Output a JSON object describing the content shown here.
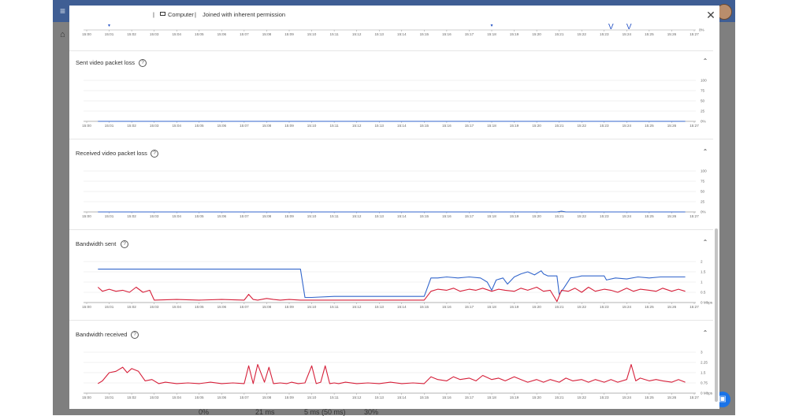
{
  "header": {
    "device_label": "Computer",
    "permission_label": "Joined with inherent permission",
    "close_icon": "close-icon"
  },
  "time_ticks": [
    "15:00",
    "15:01",
    "15:02",
    "15:03",
    "15:04",
    "15:05",
    "15:06",
    "15:07",
    "15:08",
    "15:09",
    "15:10",
    "15:11",
    "15:12",
    "15:13",
    "15:14",
    "15:15",
    "15:16",
    "15:17",
    "15:18",
    "15:19",
    "15:20",
    "15:21",
    "15:22",
    "15:23",
    "15:24",
    "15:25",
    "15:26",
    "15:27"
  ],
  "top_chart": {
    "y_tick": "0%",
    "markers": [
      {
        "time": 1.0,
        "label": "▾"
      },
      {
        "time": 18.0,
        "label": "▾"
      },
      {
        "time": 23.3,
        "label": "V"
      },
      {
        "time": 24.1,
        "label": "V"
      }
    ]
  },
  "sections": [
    {
      "title": "Sent video packet loss"
    },
    {
      "title": "Received video packet loss"
    },
    {
      "title": "Bandwidth sent"
    },
    {
      "title": "Bandwidth received"
    }
  ],
  "chart_data": [
    {
      "type": "line",
      "title": "Sent video packet loss",
      "y_ticks": [
        "100",
        "75",
        "50",
        "25",
        "0%"
      ],
      "ylim": [
        0,
        100
      ],
      "series": [
        {
          "color": "#3366cc",
          "x": [
            0.5,
            26.6
          ],
          "y": [
            0,
            0
          ]
        }
      ]
    },
    {
      "type": "line",
      "title": "Received video packet loss",
      "y_ticks": [
        "100",
        "75",
        "50",
        "25",
        "0%"
      ],
      "ylim": [
        0,
        100
      ],
      "series": [
        {
          "color": "#3366cc",
          "x": [
            0.5,
            20.9,
            21.1,
            21.3,
            26.6
          ],
          "y": [
            0,
            0,
            2,
            0,
            0
          ]
        }
      ]
    },
    {
      "type": "line",
      "title": "Bandwidth sent",
      "y_ticks": [
        "2",
        "1.5",
        "1",
        "0.5",
        "0 Mbps"
      ],
      "ylim": [
        0,
        2
      ],
      "series": [
        {
          "color": "#3366cc",
          "x": [
            0.5,
            9.5,
            9.7,
            10.0,
            11.0,
            12.5,
            15.0,
            15.1,
            15.3,
            15.6,
            16.0,
            16.5,
            17.0,
            17.5,
            17.8,
            18.0,
            18.2,
            18.5,
            18.7,
            19.0,
            19.3,
            19.6,
            19.9,
            20.2,
            20.3,
            20.5,
            20.9,
            21.0,
            21.2,
            21.5,
            21.8,
            22.0,
            22.5,
            23.0,
            23.1,
            23.5,
            24.0,
            24.5,
            25.0,
            25.5,
            26.0,
            26.6
          ],
          "y": [
            1.63,
            1.63,
            0.25,
            0.25,
            0.3,
            0.3,
            0.3,
            0.6,
            1.2,
            1.2,
            1.25,
            1.2,
            1.25,
            1.2,
            1.0,
            0.6,
            1.1,
            1.2,
            0.9,
            1.25,
            1.4,
            1.5,
            1.35,
            1.55,
            1.4,
            1.3,
            1.3,
            0.4,
            0.7,
            1.2,
            1.25,
            1.3,
            1.3,
            1.3,
            1.1,
            1.2,
            1.15,
            1.25,
            1.2,
            1.25,
            1.25,
            1.25
          ]
        },
        {
          "color": "#d6203a",
          "x": [
            0.5,
            0.7,
            1.0,
            1.3,
            1.6,
            1.9,
            2.2,
            2.5,
            2.8,
            3.0,
            4.0,
            5.0,
            6.0,
            7.0,
            7.2,
            7.4,
            7.6,
            8.0,
            8.3,
            8.6,
            9.0,
            9.5,
            10.0,
            11.0,
            12.0,
            13.0,
            14.0,
            15.0,
            15.3,
            15.6,
            16.0,
            16.3,
            16.6,
            17.0,
            17.3,
            17.6,
            18.0,
            18.3,
            18.6,
            19.0,
            19.3,
            19.6,
            20.0,
            20.3,
            20.6,
            20.9,
            21.1,
            21.4,
            21.7,
            22.0,
            22.3,
            22.6,
            23.0,
            23.3,
            23.6,
            24.0,
            24.3,
            24.6,
            25.0,
            25.3,
            25.6,
            26.0,
            26.3,
            26.6
          ],
          "y": [
            0.75,
            0.55,
            0.65,
            0.55,
            0.6,
            0.5,
            0.75,
            0.5,
            0.6,
            0.12,
            0.15,
            0.12,
            0.15,
            0.12,
            0.4,
            0.15,
            0.12,
            0.2,
            0.15,
            0.12,
            0.15,
            0.12,
            0.12,
            0.12,
            0.12,
            0.12,
            0.12,
            0.12,
            0.55,
            0.65,
            0.6,
            0.7,
            0.55,
            0.65,
            0.6,
            0.7,
            0.55,
            0.65,
            0.6,
            0.55,
            0.7,
            0.6,
            0.75,
            0.55,
            0.6,
            0.05,
            0.6,
            0.55,
            0.7,
            0.5,
            0.75,
            0.55,
            0.65,
            0.6,
            0.5,
            0.7,
            0.55,
            0.65,
            0.6,
            0.55,
            0.7,
            0.55,
            0.65,
            0.55
          ]
        }
      ]
    },
    {
      "type": "line",
      "title": "Bandwidth received",
      "y_ticks": [
        "3",
        "2.25",
        "1.5",
        "0.75",
        "0 Mbps"
      ],
      "ylim": [
        0,
        3
      ],
      "series": [
        {
          "color": "#d6203a",
          "x": [
            0.5,
            0.7,
            1.0,
            1.3,
            1.6,
            1.8,
            2.0,
            2.3,
            2.6,
            2.9,
            3.2,
            3.5,
            4.0,
            4.5,
            5.0,
            5.5,
            6.0,
            6.5,
            7.0,
            7.2,
            7.4,
            7.6,
            7.9,
            8.1,
            8.3,
            8.6,
            8.9,
            9.1,
            9.4,
            9.7,
            10.0,
            10.2,
            10.4,
            10.6,
            10.8,
            11.0,
            11.2,
            11.5,
            12.0,
            12.5,
            13.0,
            13.5,
            14.0,
            14.5,
            15.0,
            15.3,
            15.6,
            16.0,
            16.3,
            16.6,
            17.0,
            17.3,
            17.6,
            18.0,
            18.3,
            18.6,
            19.0,
            19.3,
            19.6,
            20.0,
            20.3,
            20.6,
            21.0,
            21.3,
            21.6,
            22.0,
            22.3,
            22.6,
            23.0,
            23.3,
            23.6,
            24.0,
            24.2,
            24.4,
            24.6,
            25.0,
            25.3,
            25.6,
            26.0,
            26.3,
            26.6
          ],
          "y": [
            0.7,
            0.9,
            1.5,
            1.6,
            1.9,
            1.5,
            1.8,
            1.6,
            0.9,
            1.0,
            0.7,
            0.8,
            0.7,
            0.75,
            0.7,
            0.8,
            0.7,
            0.75,
            0.7,
            2.0,
            0.7,
            2.1,
            0.8,
            1.9,
            0.7,
            0.75,
            0.7,
            0.8,
            0.7,
            0.75,
            2.0,
            0.7,
            0.8,
            2.0,
            0.7,
            0.75,
            0.7,
            0.8,
            0.7,
            0.75,
            0.7,
            0.8,
            0.7,
            0.75,
            0.7,
            1.2,
            1.0,
            0.9,
            1.2,
            1.0,
            1.1,
            0.9,
            1.3,
            1.0,
            1.1,
            0.9,
            1.2,
            1.0,
            0.8,
            1.0,
            0.8,
            1.0,
            0.8,
            1.1,
            0.9,
            1.0,
            0.8,
            1.0,
            0.8,
            1.0,
            0.8,
            1.0,
            2.1,
            0.9,
            1.1,
            0.9,
            1.0,
            0.9,
            0.8,
            1.0,
            0.8
          ]
        }
      ]
    }
  ],
  "background": {
    "bottom_values": [
      "0%",
      "21 ms",
      "5 ms (50 ms)",
      "30%"
    ],
    "chat_icon": "chat-icon",
    "menu_icon": "menu-icon",
    "home_icon": "home-icon"
  }
}
